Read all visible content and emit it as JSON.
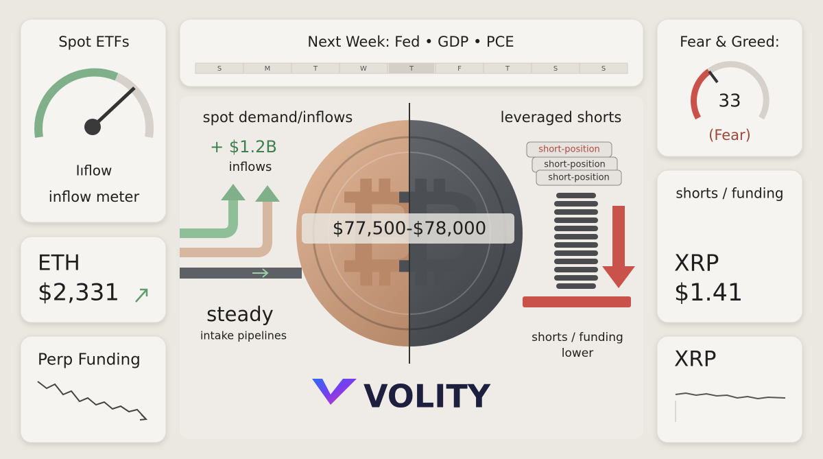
{
  "cards": {
    "spot_etfs": {
      "title": "Spot ETFs",
      "gauge_label": "Iıflow",
      "caption": "inflow meter"
    },
    "eth": {
      "symbol": "ETH",
      "price": "$2,331"
    },
    "perp_funding": {
      "title": "Perp Funding"
    },
    "fear_greed": {
      "title": "Fear & Greed:",
      "value": "33",
      "label": "(Fear)"
    },
    "xrp_funding": {
      "title": "shorts / funding",
      "symbol": "XRP",
      "price": "$1.41"
    },
    "xrp": {
      "symbol": "XRP"
    }
  },
  "calendar": {
    "title": "Next Week: Fed • GDP • PCE",
    "days": [
      "S",
      "M",
      "T",
      "W",
      "T",
      "F",
      "T",
      "S",
      "S"
    ]
  },
  "center": {
    "left_title": "spot demand/inflows",
    "inflow_amount": "+ $1.2B",
    "inflow_label": "inflows",
    "steady": "steady",
    "pipelines": "intake pipelines",
    "price_range": "$77,500-$78,000",
    "right_title": "leveraged shorts",
    "short_labels": [
      "short-position",
      "short-position",
      "short-position"
    ],
    "shorts_caption": "shorts / funding",
    "shorts_caption_2": "lower"
  },
  "brand": "VOLITY"
}
